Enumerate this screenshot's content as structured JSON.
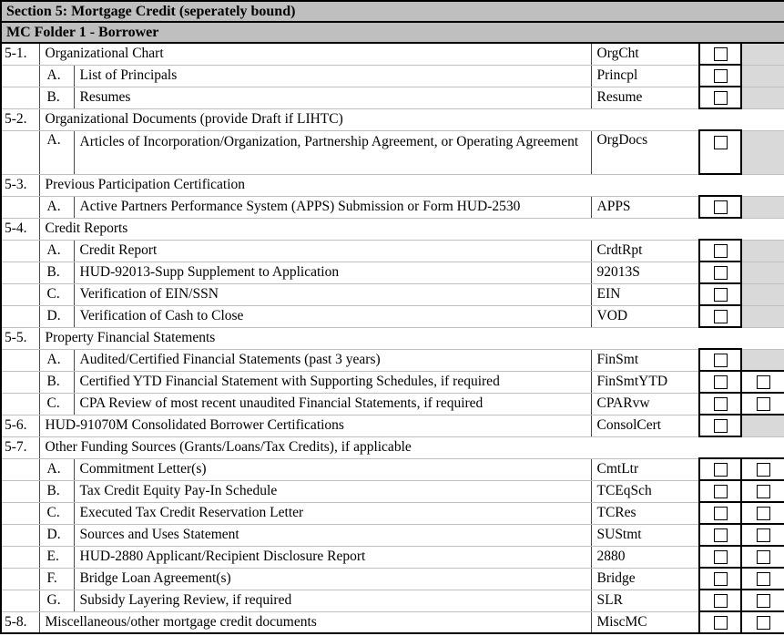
{
  "document": {
    "section_header": "Section 5: Mortgage Credit (seperately bound)",
    "folder_header": "MC Folder 1 - Borrower"
  },
  "colors": {
    "header_bg": "#BFBFBF",
    "na_cell_bg": "#D9D9D9",
    "row_line": "#BFBFBF",
    "col_line": "#4a4a4a",
    "outer_border": "#000000"
  },
  "checkbox_state": "unchecked",
  "table": {
    "rows": [
      {
        "kind": "item-num",
        "num": "5-1.",
        "letter": "",
        "text": "Organizational Chart",
        "code": "OrgCht",
        "checkboxes": 1,
        "tall": false
      },
      {
        "kind": "item",
        "num": "",
        "letter": "A.",
        "text": "List of Principals",
        "code": "Princpl",
        "checkboxes": 1,
        "tall": false
      },
      {
        "kind": "item",
        "num": "",
        "letter": "B.",
        "text": "Resumes",
        "code": "Resume",
        "checkboxes": 1,
        "tall": false
      },
      {
        "kind": "section",
        "num": "5-2.",
        "letter": "",
        "text": "Organizational Documents (provide Draft if LIHTC)",
        "code": "",
        "checkboxes": 0,
        "tall": false
      },
      {
        "kind": "item",
        "num": "",
        "letter": "A.",
        "text": "Articles of Incorporation/Organization, Partnership Agreement, or Operating Agreement",
        "code": "OrgDocs",
        "checkboxes": 1,
        "tall": true
      },
      {
        "kind": "section",
        "num": "5-3.",
        "letter": "",
        "text": "Previous Participation Certification",
        "code": "",
        "checkboxes": 0,
        "tall": false
      },
      {
        "kind": "item",
        "num": "",
        "letter": "A.",
        "text": "Active Partners Performance System (APPS) Submission or Form HUD-2530",
        "code": "APPS",
        "checkboxes": 1,
        "tall": false
      },
      {
        "kind": "section",
        "num": "5-4.",
        "letter": "",
        "text": "Credit Reports",
        "code": "",
        "checkboxes": 0,
        "tall": false
      },
      {
        "kind": "item",
        "num": "",
        "letter": "A.",
        "text": "Credit Report",
        "code": "CrdtRpt",
        "checkboxes": 1,
        "tall": false
      },
      {
        "kind": "item",
        "num": "",
        "letter": "B.",
        "text": "HUD-92013-Supp Supplement to Application",
        "code": "92013S",
        "checkboxes": 1,
        "tall": false
      },
      {
        "kind": "item",
        "num": "",
        "letter": "C.",
        "text": "Verification of EIN/SSN",
        "code": "EIN",
        "checkboxes": 1,
        "tall": false
      },
      {
        "kind": "item",
        "num": "",
        "letter": "D.",
        "text": "Verification of Cash to Close",
        "code": "VOD",
        "checkboxes": 1,
        "tall": false
      },
      {
        "kind": "section",
        "num": "5-5.",
        "letter": "",
        "text": "Property Financial Statements",
        "code": "",
        "checkboxes": 0,
        "tall": false
      },
      {
        "kind": "item",
        "num": "",
        "letter": "A.",
        "text": "Audited/Certified Financial Statements (past 3 years)",
        "code": "FinSmt",
        "checkboxes": 1,
        "tall": false
      },
      {
        "kind": "item",
        "num": "",
        "letter": "B.",
        "text": "Certified YTD Financial Statement with Supporting Schedules, if required",
        "code": "FinSmtYTD",
        "checkboxes": 2,
        "tall": false
      },
      {
        "kind": "item",
        "num": "",
        "letter": "C.",
        "text": "CPA Review of most recent unaudited Financial Statements, if required",
        "code": "CPARvw",
        "checkboxes": 2,
        "tall": false
      },
      {
        "kind": "item-num",
        "num": "5-6.",
        "letter": "",
        "text": "HUD-91070M Consolidated Borrower Certifications",
        "code": "ConsolCert",
        "checkboxes": 1,
        "tall": false
      },
      {
        "kind": "section",
        "num": "5-7.",
        "letter": "",
        "text": "Other Funding Sources (Grants/Loans/Tax Credits), if applicable",
        "code": "",
        "checkboxes": 0,
        "tall": false
      },
      {
        "kind": "item",
        "num": "",
        "letter": "A.",
        "text": "Commitment Letter(s)",
        "code": "CmtLtr",
        "checkboxes": 2,
        "tall": false
      },
      {
        "kind": "item",
        "num": "",
        "letter": "B.",
        "text": "Tax Credit Equity Pay-In Schedule",
        "code": "TCEqSch",
        "checkboxes": 2,
        "tall": false
      },
      {
        "kind": "item",
        "num": "",
        "letter": "C.",
        "text": "Executed Tax Credit Reservation Letter",
        "code": "TCRes",
        "checkboxes": 2,
        "tall": false
      },
      {
        "kind": "item",
        "num": "",
        "letter": "D.",
        "text": "Sources and Uses Statement",
        "code": "SUStmt",
        "checkboxes": 2,
        "tall": false
      },
      {
        "kind": "item",
        "num": "",
        "letter": "E.",
        "text": "HUD-2880 Applicant/Recipient Disclosure Report",
        "code": "2880",
        "checkboxes": 2,
        "tall": false
      },
      {
        "kind": "item",
        "num": "",
        "letter": "F.",
        "text": "Bridge Loan Agreement(s)",
        "code": "Bridge",
        "checkboxes": 2,
        "tall": false
      },
      {
        "kind": "item",
        "num": "",
        "letter": "G.",
        "text": "Subsidy Layering Review, if required",
        "code": "SLR",
        "checkboxes": 2,
        "tall": false
      },
      {
        "kind": "item-num",
        "num": "5-8.",
        "letter": "",
        "text": "Miscellaneous/other mortgage credit documents",
        "code": "MiscMC",
        "checkboxes": 2,
        "tall": false
      }
    ]
  }
}
